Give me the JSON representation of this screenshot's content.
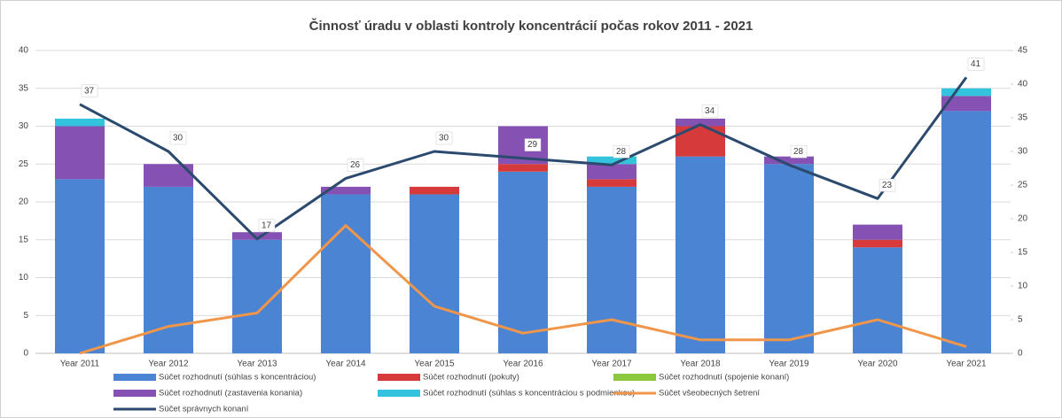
{
  "chart_data": {
    "type": "bar",
    "stacked": true,
    "title": "Činnosť úradu v oblasti kontroly koncentrácií počas rokov 2011 - 2021",
    "categories": [
      "Year 2011",
      "Year 2012",
      "Year 2013",
      "Year 2014",
      "Year 2015",
      "Year 2016",
      "Year 2017",
      "Year 2018",
      "Year 2019",
      "Year 2020",
      "Year 2021"
    ],
    "series": [
      {
        "name": "Súčet rozhodnutí (súhlas s koncentráciou)",
        "type": "bar",
        "color": "#4a84d2",
        "values": [
          23,
          22,
          15,
          21,
          21,
          24,
          22,
          26,
          25,
          14,
          32
        ]
      },
      {
        "name": "Súčet rozhodnutí (pokuty)",
        "type": "bar",
        "color": "#d63a3a",
        "values": [
          0,
          0,
          0,
          0,
          1,
          1,
          1,
          4,
          0,
          1,
          0
        ]
      },
      {
        "name": "Súčet rozhodnutí (spojenie konaní)",
        "type": "bar",
        "color": "#8dc63f",
        "values": [
          0,
          0,
          0,
          0,
          0,
          0,
          0,
          0,
          0,
          0,
          0
        ]
      },
      {
        "name": "Súčet rozhodnutí (zastavenia konania)",
        "type": "bar",
        "color": "#8552b3",
        "values": [
          7,
          3,
          1,
          1,
          0,
          5,
          2,
          1,
          1,
          2,
          2
        ]
      },
      {
        "name": "Súčet rozhodnutí (súhlas s koncentráciou s podmienkou)",
        "type": "bar",
        "color": "#33c3dc",
        "values": [
          1,
          0,
          0,
          0,
          0,
          0,
          1,
          0,
          0,
          0,
          1
        ]
      },
      {
        "name": "Súčet všeobecných šetrení",
        "type": "line",
        "axis": "y2",
        "color": "#f0964b",
        "values": [
          0,
          4,
          6,
          19,
          7,
          3,
          5,
          2,
          2,
          5,
          1
        ]
      },
      {
        "name": "Súčet správnych konaní",
        "type": "line",
        "axis": "y2",
        "color": "#2c4a6e",
        "data_labels": true,
        "values": [
          37,
          30,
          17,
          26,
          30,
          29,
          28,
          34,
          28,
          23,
          41
        ]
      }
    ],
    "ylim": [
      0,
      40
    ],
    "yticks": [
      0,
      5,
      10,
      15,
      20,
      25,
      30,
      35,
      40
    ],
    "y2lim": [
      0,
      45
    ],
    "y2ticks": [
      0,
      5,
      10,
      15,
      20,
      25,
      30,
      35,
      40,
      45
    ],
    "grid": true,
    "legend": "bottom"
  }
}
